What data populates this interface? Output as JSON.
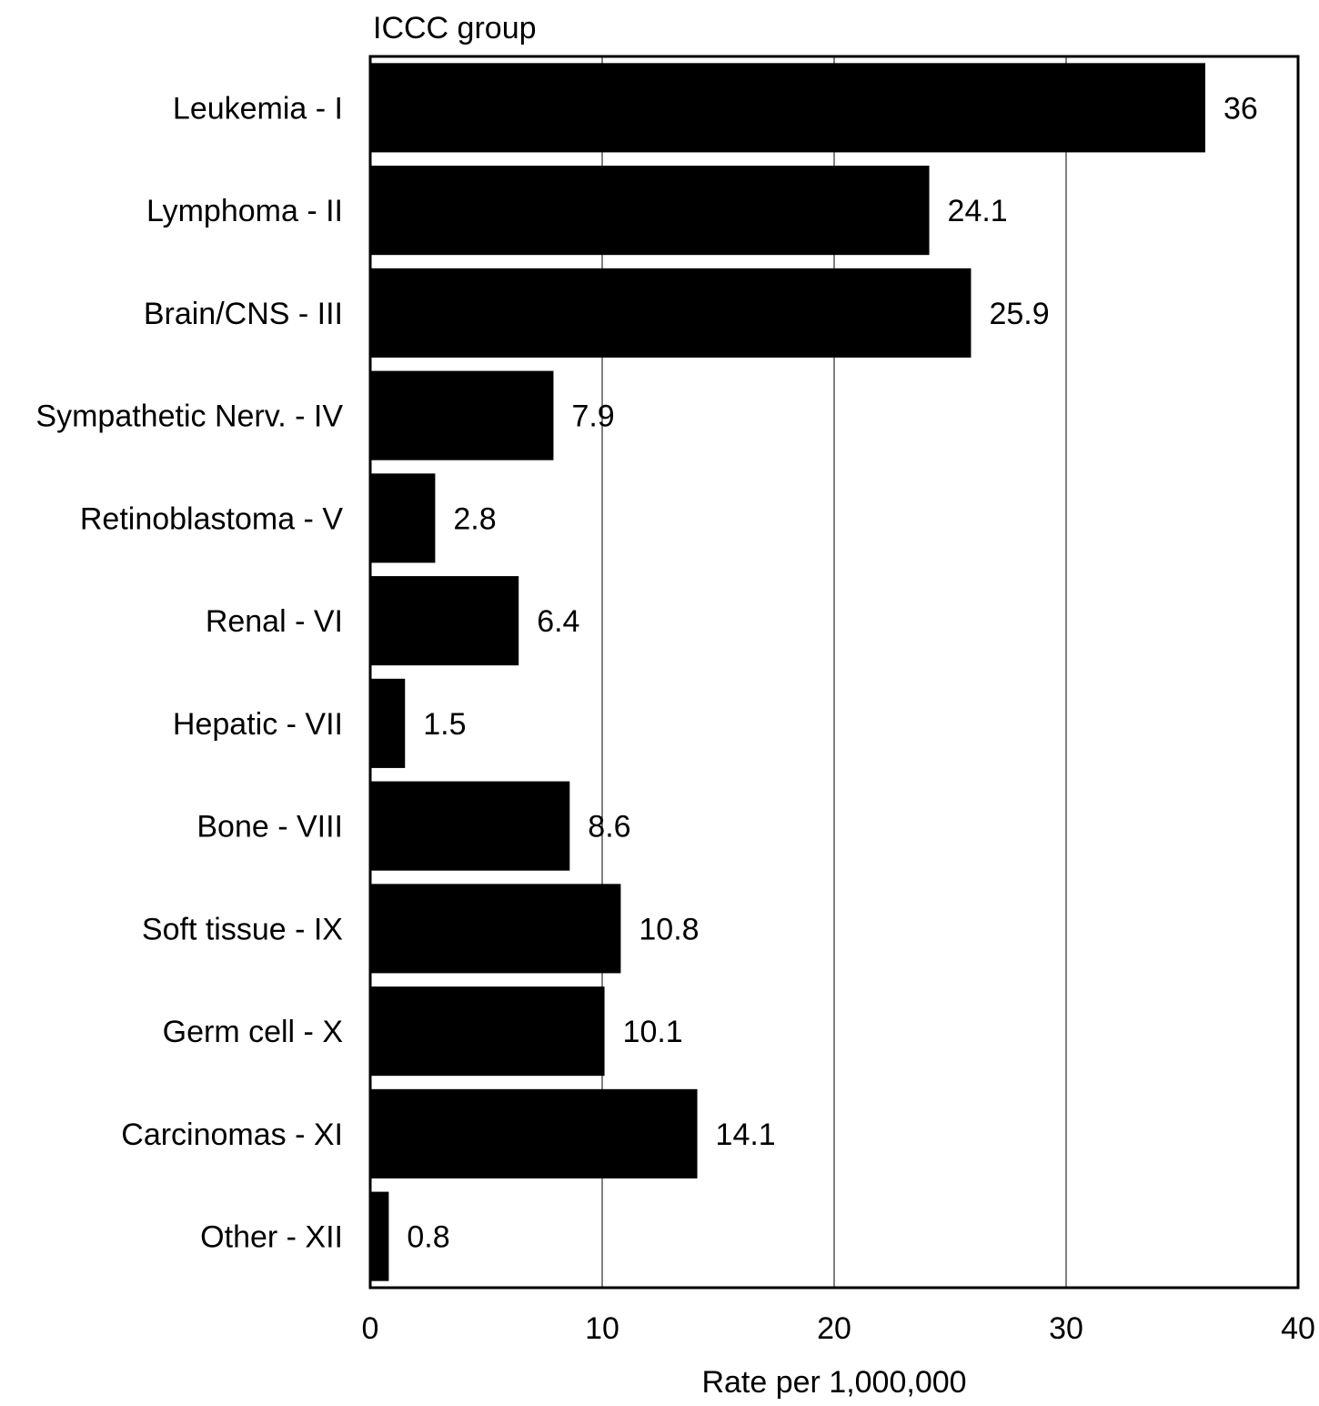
{
  "chart_data": {
    "type": "bar",
    "orientation": "horizontal",
    "categories_label": "ICCC group",
    "categories": [
      "Leukemia - I",
      "Lymphoma - II",
      "Brain/CNS - III",
      "Sympathetic Nerv. - IV",
      "Retinoblastoma - V",
      "Renal - VI",
      "Hepatic - VII",
      "Bone - VIII",
      "Soft tissue - IX",
      "Germ cell - X",
      "Carcinomas - XI",
      "Other - XII"
    ],
    "values": [
      36,
      24.1,
      25.9,
      7.9,
      2.8,
      6.4,
      1.5,
      8.6,
      10.8,
      10.1,
      14.1,
      0.8
    ],
    "value_labels": [
      "36",
      "24.1",
      "25.9",
      "7.9",
      "2.8",
      "6.4",
      "1.5",
      "8.6",
      "10.8",
      "10.1",
      "14.1",
      "0.8"
    ],
    "xlabel": "Rate per 1,000,000",
    "xlim": [
      0,
      40
    ],
    "xticks": [
      0,
      10,
      20,
      30,
      40
    ],
    "xtick_labels": [
      "0",
      "10",
      "20",
      "30",
      "40"
    ],
    "grid": "vertical",
    "bar_color": "#000000"
  }
}
